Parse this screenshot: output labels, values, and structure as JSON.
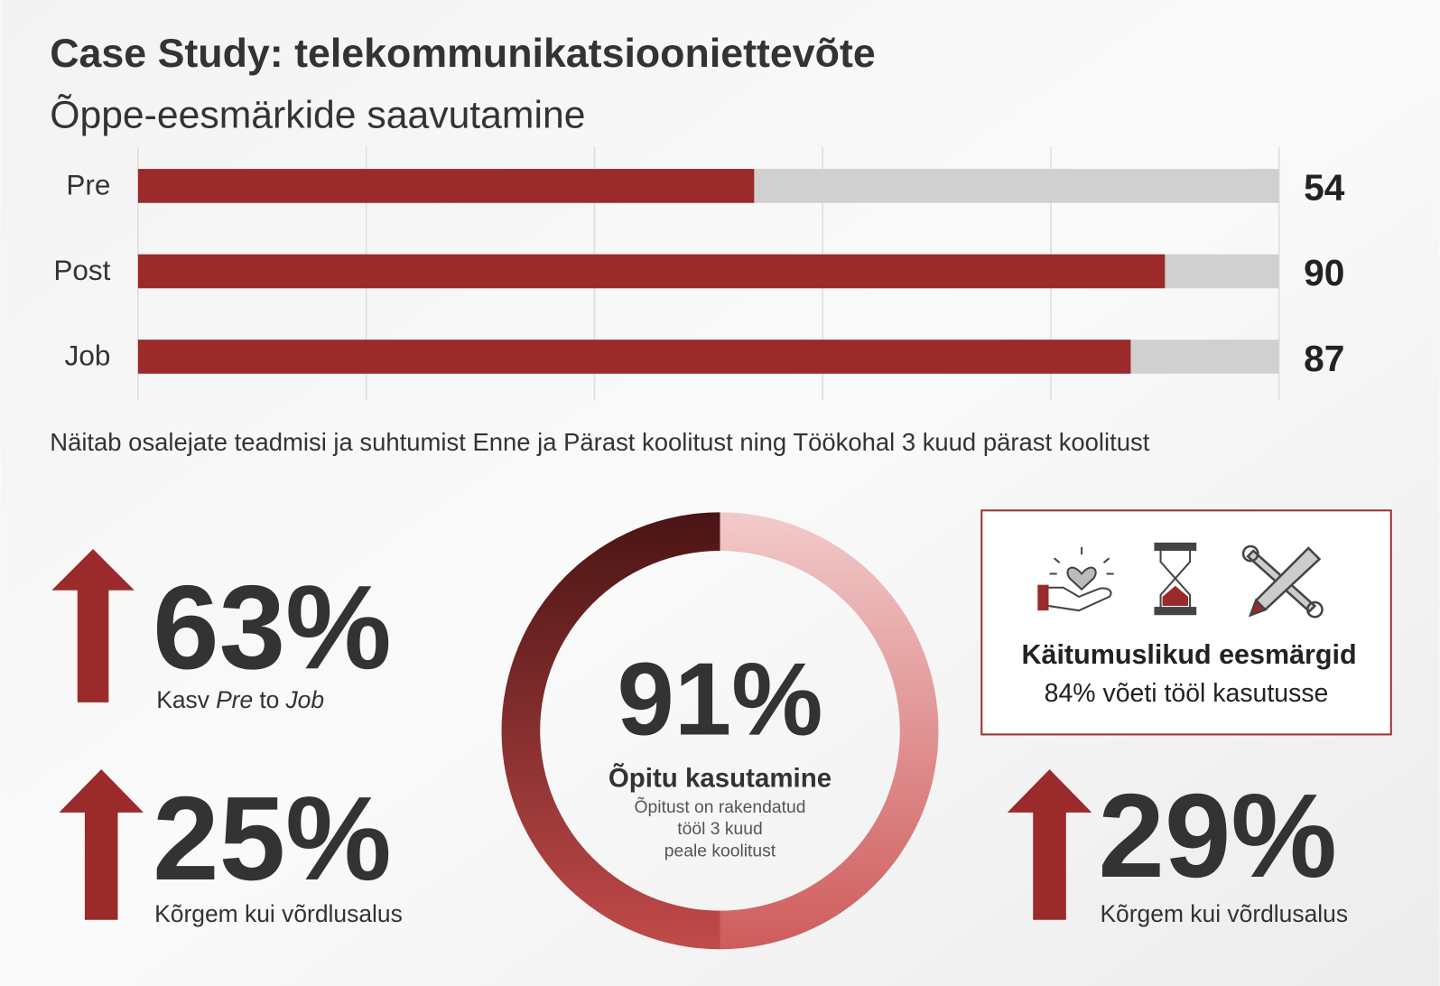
{
  "chart_data": {
    "type": "bar",
    "orientation": "horizontal",
    "title": "Case Study: telekommunikatsiooniettevõte",
    "subtitle": "Õppe-eesmärkide saavutamine",
    "categories": [
      "Pre",
      "Post",
      "Job"
    ],
    "values": [
      54,
      90,
      87
    ],
    "color": "#9b2a2a",
    "track_color": "#d0d0d0",
    "xlim": [
      0,
      100
    ],
    "xticks": [
      0,
      20,
      40,
      60,
      80,
      100
    ],
    "grid": true,
    "caption": "Näitab osalejate teadmisi ja suhtumist Enne ja Pärast koolitust ning Töökohal 3 kuud pärast koolitust"
  },
  "stats": [
    {
      "value": "63%",
      "label_parts": [
        {
          "text": "Kasv"
        },
        {
          "text": "Pre",
          "italic": true
        },
        {
          "text": "to"
        },
        {
          "text": "Job",
          "italic": true
        }
      ]
    },
    {
      "value": "25%",
      "label_parts": [
        {
          "text": "Kõrgem kui võrdlusalus"
        }
      ]
    },
    {
      "value": "29%",
      "label_parts": [
        {
          "text": "Kõrgem kui võrdlusalus"
        }
      ]
    }
  ],
  "donut": {
    "value": "91%",
    "title": "Õpitu kasutamine",
    "lines": [
      "Õpitust on rakendatud",
      "tööl 3 kuud",
      "peale koolitust"
    ]
  },
  "box": {
    "title": "Käitumuslikud eesmärgid",
    "text": "84% võeti tööl kasutusse"
  }
}
